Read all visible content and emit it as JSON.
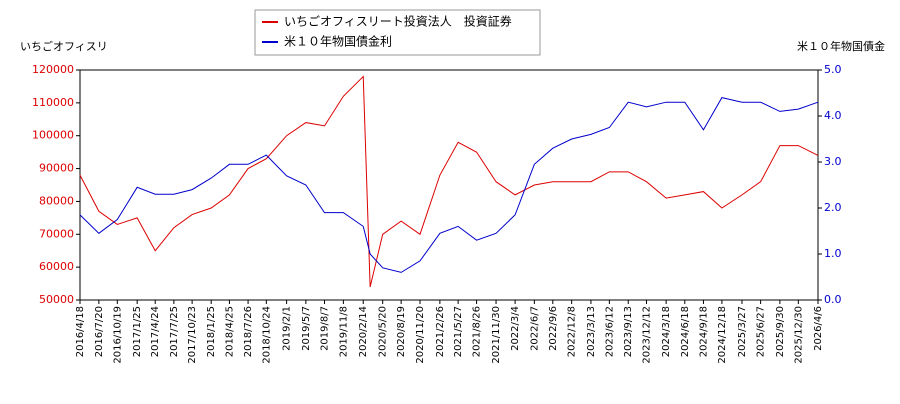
{
  "chart_data": {
    "type": "line",
    "ylabel": "いちごオフィスリ",
    "y2label": "米１０年物国債金",
    "x": [
      "2016/4/18",
      "2016/7/20",
      "2016/10/19",
      "2017/1/25",
      "2017/4/24",
      "2017/7/25",
      "2017/10/23",
      "2018/1/25",
      "2018/4/25",
      "2018/7/26",
      "2018/10/24",
      "2019/2/1",
      "2019/5/7",
      "2019/8/7",
      "2019/11/8",
      "2020/2/14",
      "2020/3/19",
      "2020/5/20",
      "2020/8/19",
      "2020/11/20",
      "2021/2/26",
      "2021/5/27",
      "2021/8/26",
      "2021/11/30",
      "2022/3/4",
      "2022/6/7",
      "2022/9/6",
      "2022/12/8",
      "2023/3/13",
      "2023/6/12",
      "2023/9/13",
      "2023/12/12",
      "2024/3/18",
      "2024/6/18",
      "2024/9/18",
      "2024/12/18",
      "2025/3/27",
      "2025/6/27",
      "2025/9/30",
      "2025/12/30",
      "2026/4/6"
    ],
    "series": [
      {
        "name": "いちごオフィスリート投資法人　投資証券",
        "color": "#dd0000",
        "axis": "y",
        "values": [
          88000,
          77000,
          73000,
          75000,
          65000,
          72000,
          76000,
          78000,
          82000,
          90000,
          93000,
          100000,
          104000,
          103000,
          112000,
          118000,
          54000,
          70000,
          74000,
          70000,
          88000,
          98000,
          95000,
          86000,
          82000,
          85000,
          86000,
          86000,
          86000,
          89000,
          89000,
          86000,
          81000,
          82000,
          83000,
          78000,
          82000,
          86000,
          97000,
          97000,
          94000
        ]
      },
      {
        "name": "米１０年物国債金利",
        "color": "#0000cc",
        "axis": "y2",
        "values": [
          1.85,
          1.45,
          1.75,
          2.45,
          2.3,
          2.3,
          2.4,
          2.65,
          2.95,
          2.95,
          3.15,
          2.7,
          2.5,
          1.9,
          1.9,
          1.6,
          1.0,
          0.7,
          0.6,
          0.85,
          1.45,
          1.6,
          1.3,
          1.45,
          1.85,
          2.95,
          3.3,
          3.5,
          3.6,
          3.75,
          4.3,
          4.2,
          4.3,
          4.3,
          3.7,
          4.4,
          4.3,
          4.3,
          4.1,
          4.15,
          4.3
        ]
      }
    ],
    "xlim": [
      "2016/4/18",
      "2026/4/6"
    ],
    "xticks": [
      "2016/4/18",
      "2016/7/20",
      "2016/10/19",
      "2017/1/25",
      "2017/4/24",
      "2017/7/25",
      "2017/10/23",
      "2018/1/25",
      "2018/4/25",
      "2018/7/26",
      "2018/10/24",
      "2019/2/1",
      "2019/5/7",
      "2019/8/7",
      "2019/11/8",
      "2020/2/14",
      "2020/5/20",
      "2020/8/19",
      "2020/11/20",
      "2021/2/26",
      "2021/5/27",
      "2021/8/26",
      "2021/11/30",
      "2022/3/4",
      "2022/6/7",
      "2022/9/6",
      "2022/12/8",
      "2023/3/13",
      "2023/6/12",
      "2023/9/13",
      "2023/12/12",
      "2024/3/18",
      "2024/6/18",
      "2024/9/18",
      "2024/12/18",
      "2025/3/27",
      "2025/6/27",
      "2025/9/30",
      "2025/12/30",
      "2026/4/6"
    ],
    "ylim": [
      50000,
      120000
    ],
    "yticks": [
      50000,
      60000,
      70000,
      80000,
      90000,
      100000,
      110000,
      120000
    ],
    "y2lim": [
      0,
      5
    ],
    "y2ticks": [
      {
        "value": 0,
        "label": "0.0"
      },
      {
        "value": 1,
        "label": "1.0"
      },
      {
        "value": 2,
        "label": "2.0"
      },
      {
        "value": 3,
        "label": "3.0"
      },
      {
        "value": 4,
        "label": "4.0"
      },
      {
        "value": 5,
        "label": "5.0"
      }
    ]
  }
}
